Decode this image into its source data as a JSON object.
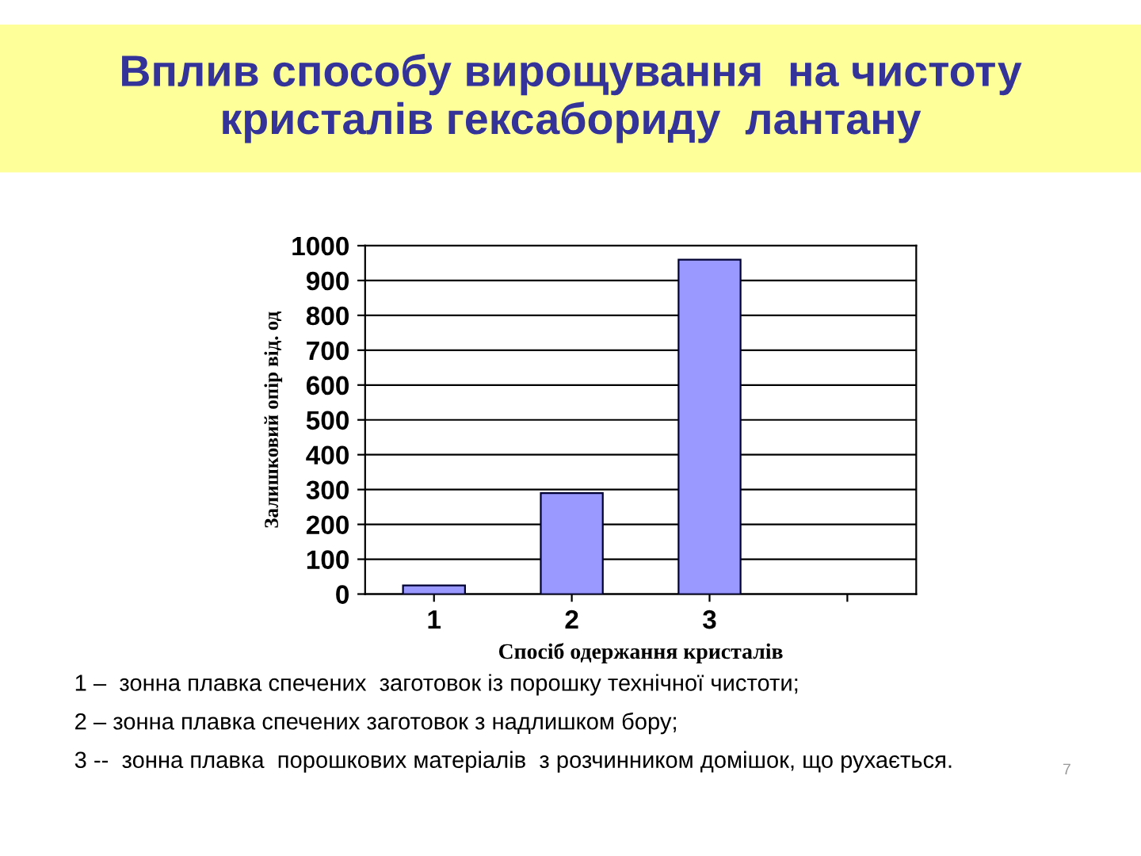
{
  "chart_data": {
    "type": "bar",
    "title": "Вплив способу вирощування  на чистоту\nкристалів гексабориду  лантану",
    "xlabel": "Спосіб одержання кристалів",
    "ylabel": "Залишковий опір від. од",
    "categories": [
      "1",
      "2",
      "3",
      null
    ],
    "values": [
      25,
      290,
      960,
      null
    ],
    "color": "#9999ff",
    "ylim": [
      0,
      1000
    ],
    "yticks": [
      0,
      100,
      200,
      300,
      400,
      500,
      600,
      700,
      800,
      900,
      1000
    ],
    "grid": "y",
    "annotations": [
      "1 –  зонна плавка спечених  заготовок із порошку технічної чистоти;",
      "2 – зонна плавка спечених заготовок з надлишком бору;",
      "3 --  зонна плавка  порошкових матеріалів  з розчинником домішок, що рухається.",
      "7"
    ]
  }
}
